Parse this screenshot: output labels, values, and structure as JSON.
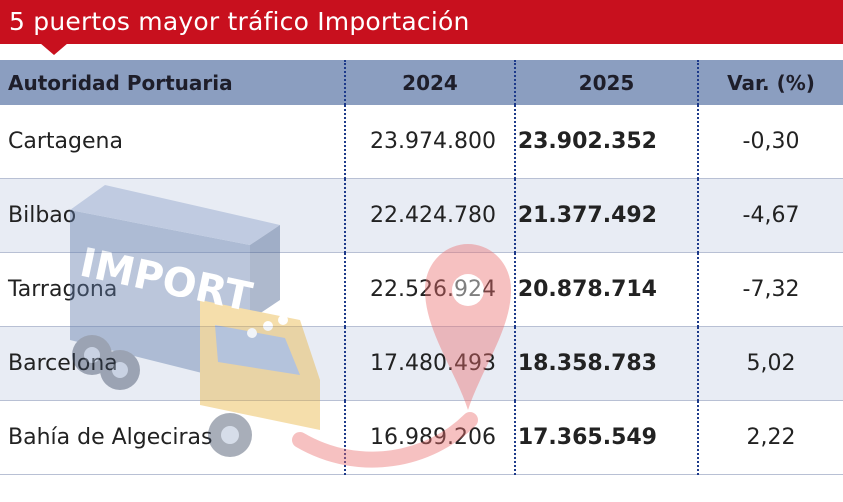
{
  "title": "5 puertos mayor tráfico Importación",
  "colors": {
    "title_bg": "#c8101e",
    "header_bg": "#8b9ec0",
    "row_alt_bg": "#e2e7f1",
    "divider": "#1d3a8a"
  },
  "watermark": {
    "icon": "import-truck-icon",
    "text": "IMPORT"
  },
  "table": {
    "headers": {
      "port": "Autoridad Portuaria",
      "y2024": "2024",
      "y2025": "2025",
      "var": "Var. (%)"
    },
    "rows": [
      {
        "port": "Cartagena",
        "y2024": "23.974.800",
        "y2025": "23.902.352",
        "var": "-0,30"
      },
      {
        "port": "Bilbao",
        "y2024": "22.424.780",
        "y2025": "21.377.492",
        "var": "-4,67"
      },
      {
        "port": "Tarragona",
        "y2024": "22.526.924",
        "y2025": "20.878.714",
        "var": "-7,32"
      },
      {
        "port": "Barcelona",
        "y2024": "17.480.493",
        "y2025": "18.358.783",
        "var": "5,02"
      },
      {
        "port": "Bahía de Algeciras",
        "y2024": "16.989.206",
        "y2025": "17.365.549",
        "var": "2,22"
      }
    ]
  }
}
